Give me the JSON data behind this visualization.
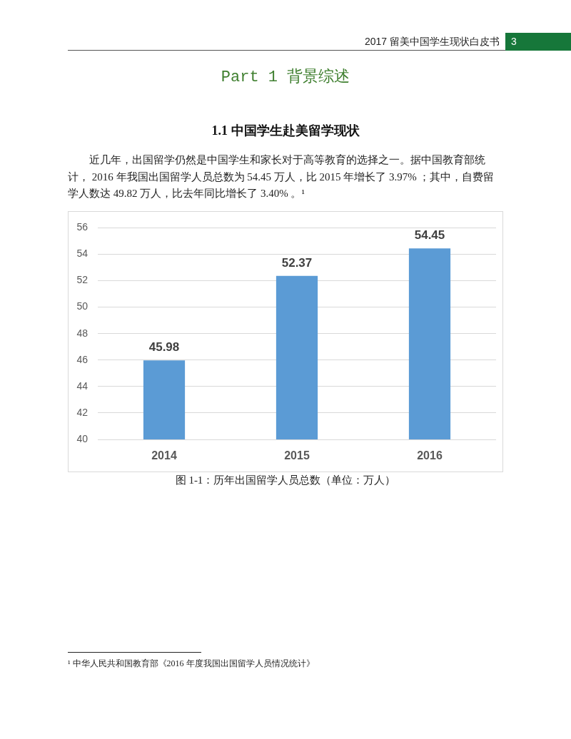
{
  "chart_data": {
    "type": "bar",
    "title": "图 1-1：历年出国留学人员总数（单位：万人）",
    "categories": [
      "2014",
      "2015",
      "2016"
    ],
    "values": [
      45.98,
      52.37,
      54.45
    ],
    "color": "#5b9bd5",
    "ylim": [
      40,
      56
    ],
    "yticks": [
      40,
      42,
      44,
      46,
      48,
      50,
      52,
      54,
      56
    ],
    "grid": "y",
    "data_labels": true,
    "annotations": [
      "2017 留美中国学生现状白皮书",
      "3",
      "Part 1 背景综述",
      "1.1 中国学生赴美留学现状",
      "近几年，出国留学仍然是中国学生和家长对于高等教育的选择之一。据中国教育部统计， 2016 年我国出国留学人员总数为 54.45 万人，比 2015 年增长了 3.97% ；其中，自费留学人数达 49.82 万人，比去年同比增长了 3.40% 。¹",
      "¹ 中华人民共和国教育部《2016 年度我国出国留学人员情况统计》"
    ]
  }
}
